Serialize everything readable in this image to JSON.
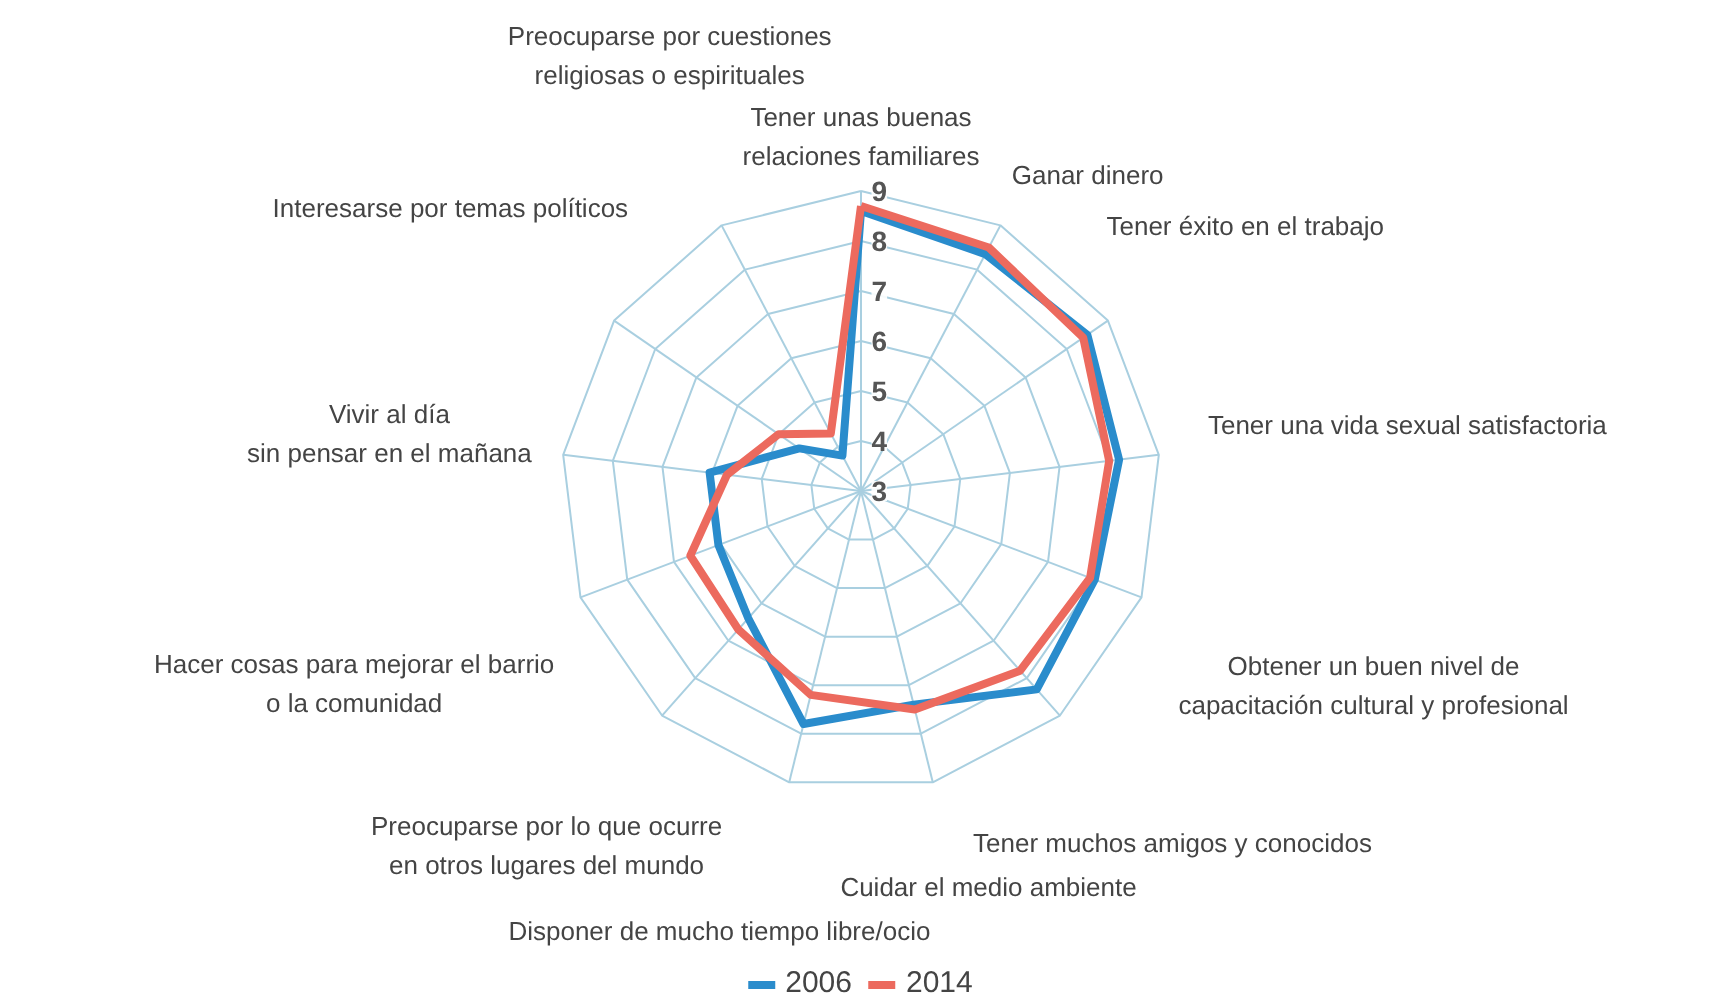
{
  "chart_data": {
    "type": "radar",
    "categories": [
      "Tener unas buenas\nrelaciones familiares",
      "Ganar dinero",
      "Tener éxito en el trabajo",
      "Tener una vida sexual satisfactoria",
      "Obtener un buen nivel de\ncapacitación cultural y profesional",
      "Tener muchos amigos y conocidos",
      "Cuidar el medio ambiente",
      "Disponer de mucho tiempo libre/ocio",
      "Preocuparse por lo que ocurre\nen otros lugares del mundo",
      "Hacer cosas para mejorar el barrio\no la comunidad",
      "Vivir al día\nsin pensar en el mañana",
      "Interesarse por temas políticos",
      "Preocuparse por cuestiones\nreligiosas o espirituales"
    ],
    "series": [
      {
        "name": "2006",
        "color": "#2a8ccc",
        "values": [
          8.6,
          8.35,
          8.5,
          8.2,
          8.0,
          8.3,
          7.4,
          7.8,
          6.4,
          6.05,
          6.05,
          4.5,
          3.8
        ]
      },
      {
        "name": "2014",
        "color": "#ec6a5e",
        "values": [
          8.7,
          8.5,
          8.4,
          8.0,
          7.9,
          7.8,
          7.5,
          7.2,
          6.7,
          6.65,
          5.7,
          5.0,
          4.3
        ]
      }
    ],
    "ylim": [
      3,
      9
    ],
    "yticks": [
      3,
      4,
      5,
      6,
      7,
      8,
      9
    ],
    "grid": true,
    "legend": "bottom"
  }
}
